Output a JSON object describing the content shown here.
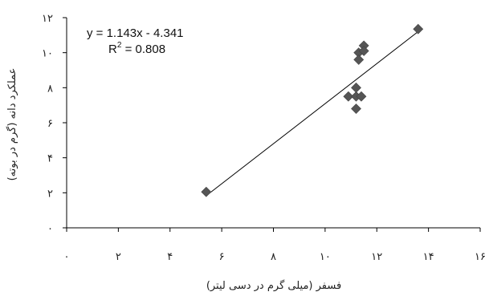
{
  "chart_data": {
    "type": "scatter",
    "xlabel": "فسفر (میلی گرم در دسی لیتر)",
    "ylabel": "عملکرد دانه (گرم در بوته)",
    "xlim": [
      0,
      16
    ],
    "ylim": [
      0,
      12
    ],
    "x_ticks": [
      0,
      2,
      4,
      6,
      8,
      10,
      12,
      14,
      16
    ],
    "y_ticks": [
      0,
      2,
      4,
      6,
      8,
      10,
      12
    ],
    "x_tick_labels": [
      "۰",
      "۲",
      "۴",
      "۶",
      "۸",
      "۱۰",
      "۱۲",
      "۱۴",
      "۱۶"
    ],
    "y_tick_labels": [
      "۰",
      "۲",
      "۴",
      "۶",
      "۸",
      "۱۰",
      "۱۲"
    ],
    "grid": false,
    "marker": "diamond",
    "marker_color": "#555555",
    "line_color": "#000000",
    "series": [
      {
        "x": [
          5.4,
          10.9,
          11.2,
          11.2,
          11.2,
          11.3,
          11.3,
          11.4,
          11.5,
          11.5,
          13.6
        ],
        "y": [
          2.05,
          7.5,
          7.5,
          8.0,
          6.8,
          10.0,
          9.6,
          7.5,
          10.4,
          10.1,
          11.35
        ]
      }
    ],
    "trendline": {
      "slope": 1.143,
      "intercept": -4.341
    },
    "annotations": {
      "equation": "y = 1.143x - 4.341",
      "r2_prefix": "R",
      "r2_sup": "2",
      "r2_suffix": " = 0.808"
    }
  }
}
